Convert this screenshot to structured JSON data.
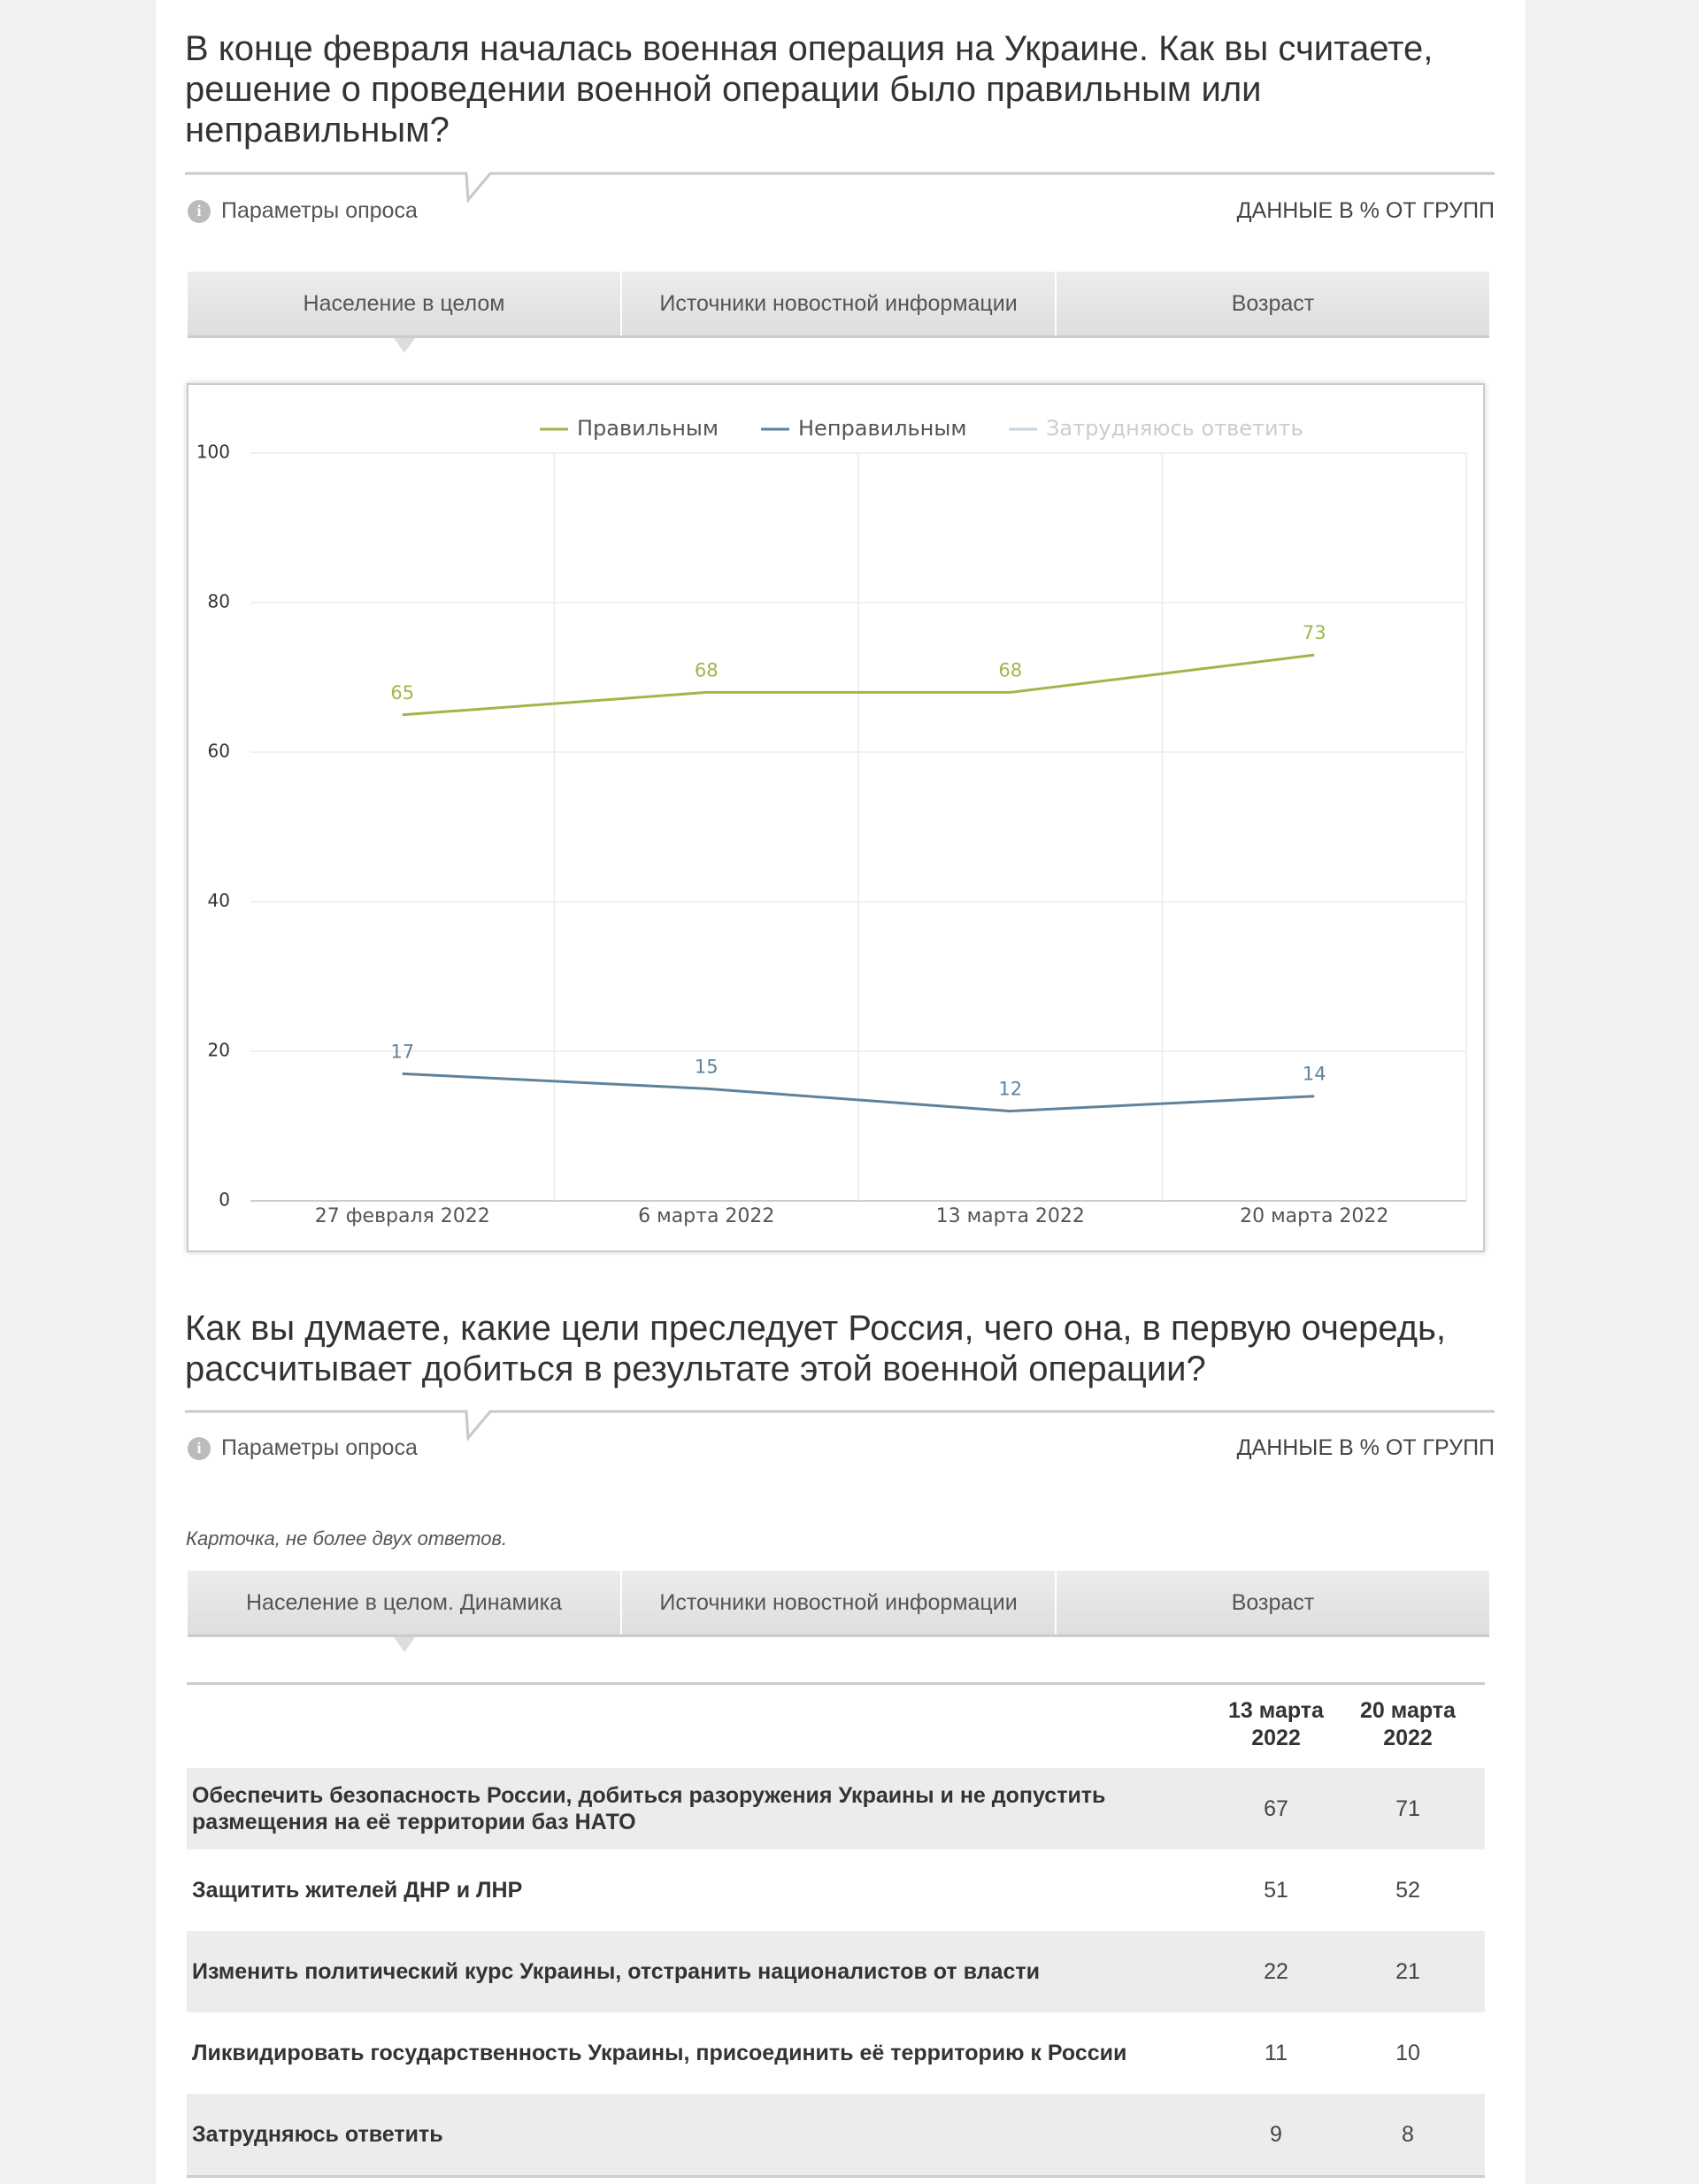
{
  "section1": {
    "question": "В конце февраля началась военная операция на Украине. Как вы считаете, решение о проведении военной операции было правильным или неправильным?",
    "params": "Параметры опроса",
    "data_note": "ДАННЫЕ В % ОТ ГРУПП",
    "tabs": [
      "Население в целом",
      "Источники новостной информации",
      "Возраст"
    ]
  },
  "chart_data": {
    "type": "line",
    "categories": [
      "27 февраля 2022",
      "6 марта 2022",
      "13 марта 2022",
      "20 марта 2022"
    ],
    "series": [
      {
        "name": "Правильным",
        "color": "#9cb84a",
        "values": [
          65,
          68,
          68,
          73
        ]
      },
      {
        "name": "Неправильным",
        "color": "#5f829c",
        "values": [
          17,
          15,
          12,
          14
        ]
      },
      {
        "name": "Затрудняюсь ответить",
        "color": "#c9d4dd",
        "visible": false
      }
    ],
    "ylim": [
      0,
      100
    ],
    "yticks": [
      0,
      20,
      40,
      60,
      80,
      100
    ],
    "grid": true,
    "legend": "top"
  },
  "section2": {
    "question": "Как вы думаете, какие цели преследует Россия, чего она, в первую очередь, рассчитывает добиться в результате этой военной операции?",
    "params": "Параметры опроса",
    "data_note": "ДАННЫЕ В % ОТ ГРУПП",
    "note": "Карточка, не более двух ответов.",
    "tabs": [
      "Население в целом. Динамика",
      "Источники новостной информации",
      "Возраст"
    ],
    "table": {
      "columns": [
        "13 марта 2022",
        "20 марта 2022"
      ],
      "rows": [
        [
          "Обеспечить безопасность России, добиться разоружения Украины и не допустить размещения на её территории баз НАТО",
          67,
          71
        ],
        [
          "Защитить жителей ДНР и ЛНР",
          51,
          52
        ],
        [
          "Изменить политический курс Украины, отстранить националистов от власти",
          22,
          21
        ],
        [
          "Ликвидировать государственность Украины, присоединить её территорию к России",
          11,
          10
        ],
        [
          "Затрудняюсь ответить",
          9,
          8
        ]
      ]
    }
  }
}
